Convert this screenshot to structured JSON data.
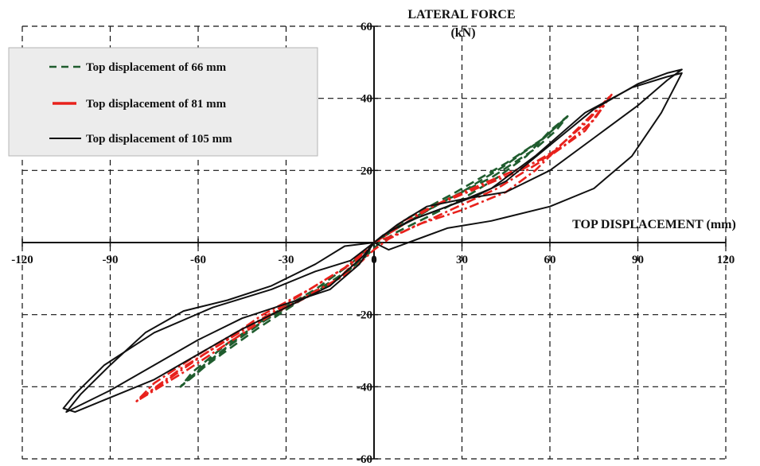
{
  "chart_data": {
    "type": "line",
    "title": "",
    "xlabel": "TOP DISPLACEMENT  (mm)",
    "ylabel": "LATERAL FORCE",
    "ylabel_unit": "(kN)",
    "xlim": [
      -120,
      120
    ],
    "ylim": [
      -60,
      60
    ],
    "x_ticks": [
      -120,
      -90,
      -60,
      -30,
      0,
      30,
      60,
      90,
      120
    ],
    "y_ticks": [
      -60,
      -40,
      -20,
      0,
      20,
      40,
      60
    ],
    "x_tick_labels": [
      "-120",
      "-90",
      "-60",
      "-30",
      "0",
      "30",
      "60",
      "90",
      "120"
    ],
    "y_tick_labels": [
      "-60",
      "-40",
      "-20",
      "",
      "20",
      "40",
      "60"
    ],
    "grid": true,
    "legend_position": "top-left",
    "series": [
      {
        "name": "Top displacement of 66 mm",
        "color": "#1f5c2e",
        "style": "dashed",
        "loops": [
          [
            [
              0,
              0
            ],
            [
              10,
              5
            ],
            [
              25,
              12
            ],
            [
              40,
              18
            ],
            [
              55,
              26
            ],
            [
              62,
              31
            ],
            [
              66,
              35
            ],
            [
              60,
              31
            ],
            [
              52,
              24
            ],
            [
              42,
              18
            ],
            [
              30,
              12
            ],
            [
              18,
              7
            ],
            [
              8,
              3
            ],
            [
              2,
              0
            ],
            [
              -3,
              -4
            ],
            [
              -12,
              -10
            ],
            [
              -25,
              -16
            ],
            [
              -40,
              -24
            ],
            [
              -52,
              -31
            ],
            [
              -62,
              -37
            ],
            [
              -66,
              -40
            ],
            [
              -60,
              -36
            ],
            [
              -50,
              -29
            ],
            [
              -38,
              -22
            ],
            [
              -25,
              -16
            ],
            [
              -12,
              -10
            ],
            [
              -3,
              -4
            ],
            [
              0,
              0
            ]
          ],
          [
            [
              0,
              0
            ],
            [
              12,
              7
            ],
            [
              28,
              14
            ],
            [
              45,
              22
            ],
            [
              58,
              29
            ],
            [
              66,
              35
            ],
            [
              58,
              29
            ],
            [
              44,
              21
            ],
            [
              30,
              14
            ],
            [
              16,
              8
            ],
            [
              6,
              3
            ],
            [
              0,
              0
            ],
            [
              -8,
              -6
            ],
            [
              -20,
              -13
            ],
            [
              -35,
              -20
            ],
            [
              -50,
              -28
            ],
            [
              -62,
              -36
            ],
            [
              -66,
              -40
            ],
            [
              -58,
              -34
            ],
            [
              -44,
              -25
            ],
            [
              -30,
              -18
            ],
            [
              -15,
              -11
            ],
            [
              -4,
              -5
            ],
            [
              0,
              0
            ]
          ]
        ]
      },
      {
        "name": "Top displacement of 81 mm",
        "color": "#e8211c",
        "style": "dashdot",
        "loops": [
          [
            [
              0,
              0
            ],
            [
              8,
              4
            ],
            [
              20,
              10
            ],
            [
              35,
              15
            ],
            [
              50,
              20
            ],
            [
              65,
              27
            ],
            [
              75,
              34
            ],
            [
              81,
              41
            ],
            [
              75,
              36
            ],
            [
              65,
              28
            ],
            [
              55,
              20
            ],
            [
              45,
              14
            ],
            [
              30,
              9
            ],
            [
              15,
              5
            ],
            [
              5,
              1
            ],
            [
              0,
              -2
            ],
            [
              -8,
              -8
            ],
            [
              -20,
              -14
            ],
            [
              -35,
              -20
            ],
            [
              -50,
              -28
            ],
            [
              -65,
              -36
            ],
            [
              -75,
              -41
            ],
            [
              -81,
              -44
            ],
            [
              -76,
              -41
            ],
            [
              -66,
              -35
            ],
            [
              -52,
              -28
            ],
            [
              -38,
              -20
            ],
            [
              -22,
              -13
            ],
            [
              -8,
              -6
            ],
            [
              0,
              0
            ]
          ],
          [
            [
              0,
              0
            ],
            [
              10,
              6
            ],
            [
              25,
              12
            ],
            [
              42,
              18
            ],
            [
              60,
              24
            ],
            [
              72,
              31
            ],
            [
              81,
              41
            ],
            [
              72,
              33
            ],
            [
              58,
              23
            ],
            [
              42,
              15
            ],
            [
              26,
              9
            ],
            [
              10,
              3
            ],
            [
              0,
              0
            ],
            [
              -12,
              -10
            ],
            [
              -28,
              -17
            ],
            [
              -45,
              -24
            ],
            [
              -62,
              -32
            ],
            [
              -75,
              -39
            ],
            [
              -81,
              -44
            ],
            [
              -72,
              -39
            ],
            [
              -58,
              -31
            ],
            [
              -42,
              -23
            ],
            [
              -26,
              -15
            ],
            [
              -10,
              -7
            ],
            [
              0,
              0
            ]
          ]
        ]
      },
      {
        "name": "Top displacement of 105 mm",
        "color": "#111111",
        "style": "solid",
        "loops": [
          [
            [
              0,
              0
            ],
            [
              8,
              5
            ],
            [
              18,
              10
            ],
            [
              30,
              12
            ],
            [
              45,
              14
            ],
            [
              60,
              20
            ],
            [
              75,
              29
            ],
            [
              90,
              38
            ],
            [
              100,
              45
            ],
            [
              105,
              48
            ],
            [
              100,
              47
            ],
            [
              90,
              44
            ],
            [
              75,
              37
            ],
            [
              60,
              27
            ],
            [
              45,
              17
            ],
            [
              35,
              13
            ],
            [
              25,
              10
            ],
            [
              15,
              7
            ],
            [
              5,
              3
            ],
            [
              0,
              0
            ],
            [
              -5,
              -6
            ],
            [
              -15,
              -13
            ],
            [
              -30,
              -17
            ],
            [
              -45,
              -21
            ],
            [
              -60,
              -27
            ],
            [
              -75,
              -34
            ],
            [
              -90,
              -41
            ],
            [
              -100,
              -45
            ],
            [
              -105,
              -47
            ],
            [
              -100,
              -42
            ],
            [
              -90,
              -34
            ],
            [
              -78,
              -25
            ],
            [
              -65,
              -19
            ],
            [
              -50,
              -16
            ],
            [
              -35,
              -12
            ],
            [
              -20,
              -6
            ],
            [
              -10,
              -1
            ],
            [
              0,
              0
            ]
          ],
          [
            [
              0,
              0
            ],
            [
              5,
              -2
            ],
            [
              15,
              1
            ],
            [
              25,
              4
            ],
            [
              40,
              6
            ],
            [
              60,
              10
            ],
            [
              75,
              15
            ],
            [
              88,
              24
            ],
            [
              98,
              36
            ],
            [
              105,
              47
            ],
            [
              100,
              46
            ],
            [
              88,
              43
            ],
            [
              72,
              36
            ],
            [
              55,
              24
            ],
            [
              40,
              15
            ],
            [
              25,
              10
            ],
            [
              12,
              6
            ],
            [
              3,
              2
            ],
            [
              0,
              0
            ],
            [
              -8,
              -5
            ],
            [
              -20,
              -8
            ],
            [
              -35,
              -13
            ],
            [
              -55,
              -18
            ],
            [
              -75,
              -25
            ],
            [
              -92,
              -34
            ],
            [
              -102,
              -42
            ],
            [
              -106,
              -46
            ],
            [
              -102,
              -47
            ],
            [
              -90,
              -43
            ],
            [
              -75,
              -38
            ],
            [
              -60,
              -31
            ],
            [
              -45,
              -24
            ],
            [
              -30,
              -18
            ],
            [
              -15,
              -12
            ],
            [
              -4,
              -4
            ],
            [
              0,
              0
            ]
          ]
        ]
      }
    ]
  },
  "legend": {
    "items": [
      {
        "label": "Top displacement of 66 mm",
        "color": "#1f5c2e",
        "style": "dashed"
      },
      {
        "label": "Top displacement of 81 mm",
        "color": "#e8211c",
        "style": "dashdot"
      },
      {
        "label": "Top displacement of 105 mm",
        "color": "#111111",
        "style": "solid"
      }
    ]
  }
}
